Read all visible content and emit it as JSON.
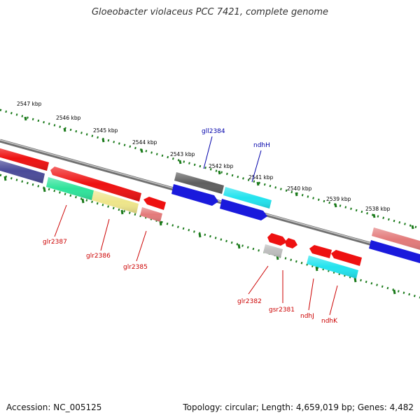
{
  "title": "Gloeobacter violaceus PCC 7421, complete genome",
  "footer": {
    "accession": "Accession: NC_005125",
    "info": "Topology: circular; Length: 4,659,019 bp; Genes: 4,482"
  },
  "colors": {
    "backbone": "#8a8a8a",
    "ticks": "#1a7a1a",
    "label_plus": "#0000aa",
    "label_minus": "#cc0000",
    "red": "#ee1111",
    "blue": "#1a1adc",
    "cyan": "#22e3ee",
    "dark_gray": "#5e5e5e",
    "light_gray": "#bdbdbd",
    "pink": "#e37a7a",
    "green": "#2ee39a",
    "yellow": "#eee58a",
    "navy": "#4a4a99"
  },
  "scale_labels": [
    "2547 kbp",
    "2546 kbp",
    "2545 kbp",
    "2544 kbp",
    "2543 kbp",
    "2542 kbp",
    "2541 kbp",
    "2540 kbp",
    "2539 kbp",
    "2538 kbp"
  ],
  "gene_labels": {
    "top": [
      "gll2384",
      "ndhH"
    ],
    "bottom": [
      "glr2387",
      "glr2386",
      "glr2385",
      "glr2382",
      "gsr2381",
      "ndhJ",
      "ndhK"
    ]
  }
}
